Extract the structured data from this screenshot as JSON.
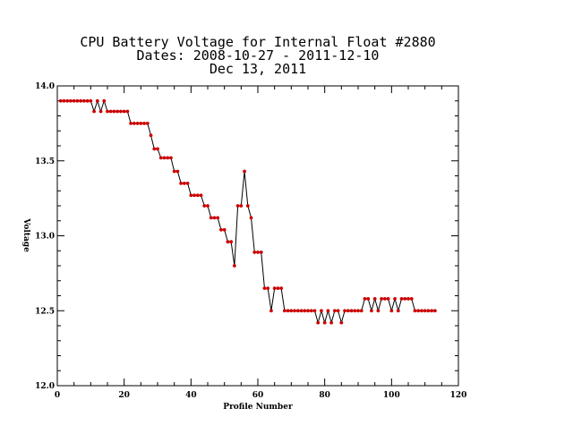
{
  "chart_data": {
    "type": "line",
    "title_lines": [
      "CPU Battery Voltage for Internal Float #2880",
      "Dates:  2008-10-27 -  2011-12-10",
      "Dec 13, 2011"
    ],
    "xlabel": "Profile Number",
    "ylabel": "Voltage",
    "xlim": [
      0,
      120
    ],
    "ylim": [
      12.0,
      14.0
    ],
    "x_ticks": [
      0,
      20,
      40,
      60,
      80,
      100,
      120
    ],
    "x_tick_labels": [
      "0",
      "20",
      "40",
      "60",
      "80",
      "100",
      "120"
    ],
    "y_ticks": [
      12.0,
      12.5,
      13.0,
      13.5,
      14.0
    ],
    "y_tick_labels": [
      "12.0",
      "12.5",
      "13.0",
      "13.5",
      "14.0"
    ],
    "grid": false,
    "line_color": "#000000",
    "marker_color": "#cc0000",
    "series": [
      {
        "x": [
          1,
          2,
          3,
          4,
          5,
          6,
          7,
          8,
          9,
          10,
          11,
          12,
          13,
          14,
          15,
          16,
          17,
          18,
          19,
          20,
          21,
          22,
          23,
          24,
          25,
          26,
          27,
          28,
          29,
          30,
          31,
          32,
          33,
          34,
          35,
          36,
          37,
          38,
          39,
          40,
          41,
          42,
          43,
          44,
          45,
          46,
          47,
          48,
          49,
          50,
          51,
          52,
          53,
          54,
          55,
          56,
          57,
          58,
          59,
          60,
          61,
          62,
          63,
          64,
          65,
          66,
          67,
          68,
          69,
          70,
          71,
          72,
          73,
          74,
          75,
          76,
          77,
          78,
          79,
          80,
          81,
          82,
          83,
          84,
          85,
          86,
          87,
          88,
          89,
          90,
          91,
          92,
          93,
          94,
          95,
          96,
          97,
          98,
          99,
          100,
          101,
          102,
          103,
          104,
          105,
          106,
          107,
          108,
          109,
          110,
          111,
          112,
          113
        ],
        "y": [
          13.9,
          13.9,
          13.9,
          13.9,
          13.9,
          13.9,
          13.9,
          13.9,
          13.9,
          13.9,
          13.83,
          13.9,
          13.83,
          13.9,
          13.83,
          13.83,
          13.83,
          13.83,
          13.83,
          13.83,
          13.83,
          13.75,
          13.75,
          13.75,
          13.75,
          13.75,
          13.75,
          13.67,
          13.58,
          13.58,
          13.52,
          13.52,
          13.52,
          13.52,
          13.43,
          13.43,
          13.35,
          13.35,
          13.35,
          13.27,
          13.27,
          13.27,
          13.27,
          13.2,
          13.2,
          13.12,
          13.12,
          13.12,
          13.04,
          13.04,
          12.96,
          12.96,
          12.8,
          13.2,
          13.2,
          13.43,
          13.2,
          13.12,
          12.89,
          12.89,
          12.89,
          12.65,
          12.65,
          12.5,
          12.65,
          12.65,
          12.65,
          12.5,
          12.5,
          12.5,
          12.5,
          12.5,
          12.5,
          12.5,
          12.5,
          12.5,
          12.5,
          12.42,
          12.5,
          12.42,
          12.5,
          12.42,
          12.5,
          12.5,
          12.42,
          12.5,
          12.5,
          12.5,
          12.5,
          12.5,
          12.5,
          12.58,
          12.58,
          12.5,
          12.58,
          12.5,
          12.58,
          12.58,
          12.58,
          12.5,
          12.58,
          12.5,
          12.58,
          12.58,
          12.58,
          12.58,
          12.5,
          12.5,
          12.5,
          12.5,
          12.5,
          12.5,
          12.5
        ]
      }
    ]
  }
}
